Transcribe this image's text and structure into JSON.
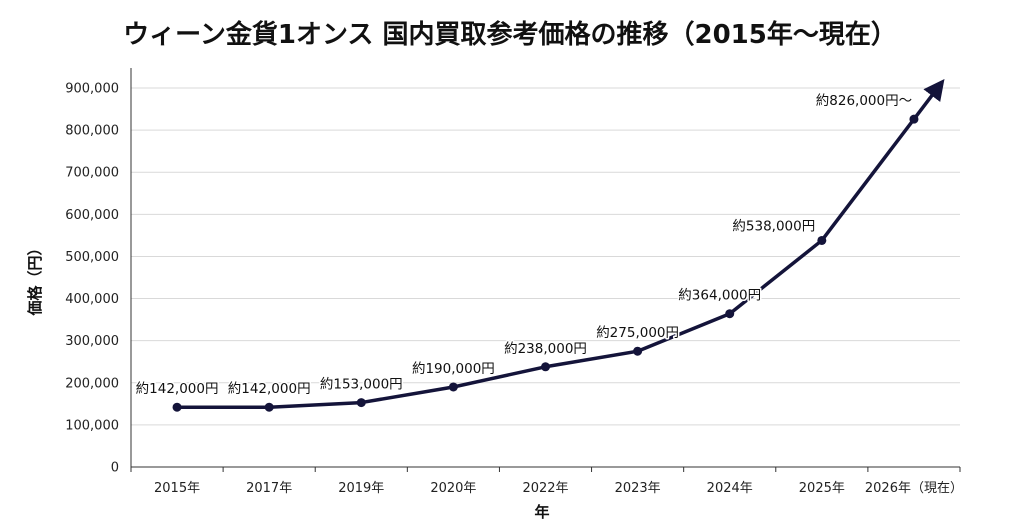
{
  "chart_data": {
    "type": "line",
    "title": "ウィーン金貨1オンス 国内買取参考価格の推移（2015年〜現在）",
    "xlabel": "年",
    "ylabel": "価格（円）",
    "categories": [
      "2015年",
      "2017年",
      "2019年",
      "2020年",
      "2022年",
      "2023年",
      "2024年",
      "2025年",
      "2026年（現在）"
    ],
    "series": [
      {
        "values": [
          142000,
          142000,
          153000,
          190000,
          238000,
          275000,
          364000,
          538000,
          826000
        ]
      }
    ],
    "annotations": [
      "約142,000円",
      "約142,000円",
      "約153,000円",
      "約190,000円",
      "約238,000円",
      "約275,000円",
      "約364,000円",
      "約538,000円",
      "約826,000円〜"
    ],
    "yticks": [
      "0",
      "100,000",
      "200,000",
      "300,000",
      "400,000",
      "500,000",
      "600,000",
      "700,000",
      "800,000",
      "900,000"
    ],
    "ylim": [
      0,
      900000
    ],
    "grid": true,
    "legend": "none",
    "trend_arrow": true,
    "colors": {
      "line": "#14143a",
      "grid": "#d9d9d9",
      "axis": "#333333"
    }
  }
}
